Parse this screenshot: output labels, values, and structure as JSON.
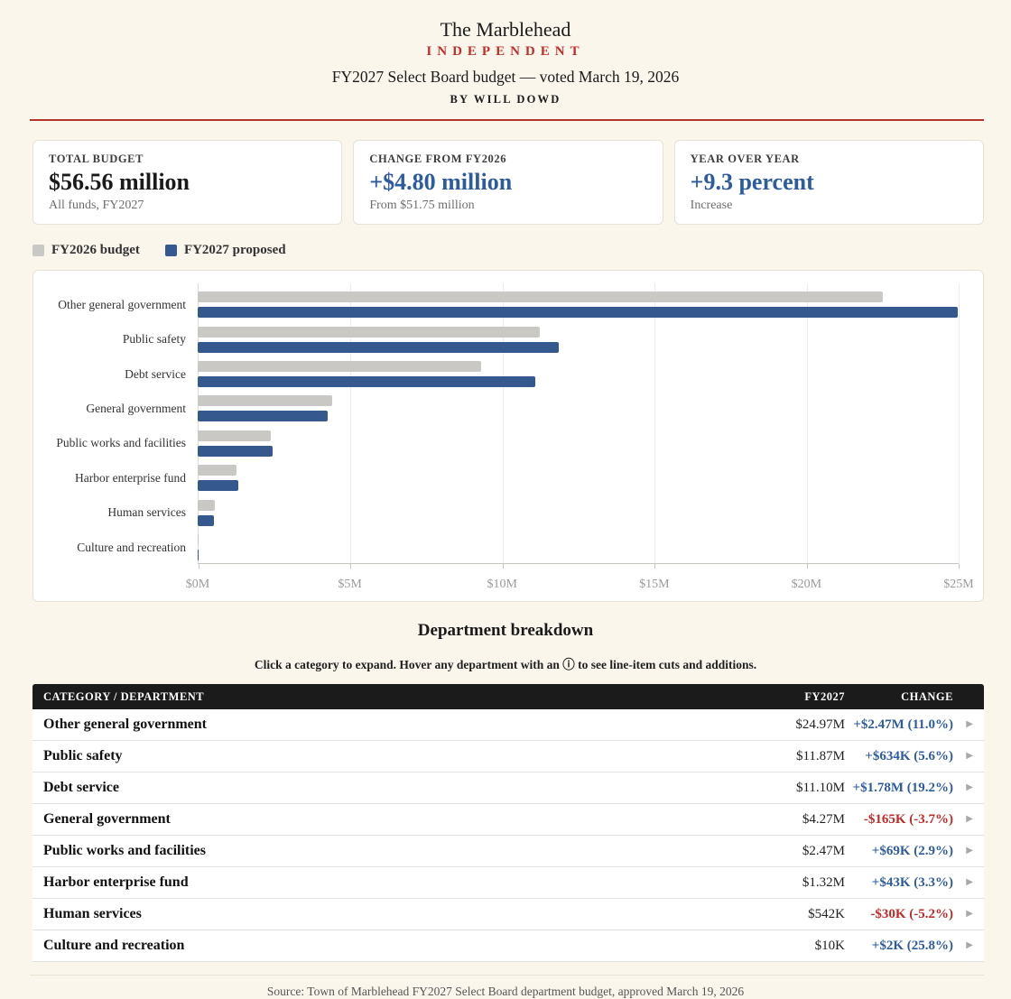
{
  "masthead": {
    "title_line1": "The Marblehead",
    "title_line2": "INDEPENDENT",
    "subtitle": "FY2027 Select Board budget — voted March 19, 2026",
    "byline": "BY WILL DOWD"
  },
  "colors": {
    "page_background": "#faf6ec",
    "accent_red": "#bf2f28",
    "accent_blue": "#2d5c9e",
    "bar_gray": "#c9c8c4",
    "bar_blue": "#35598f",
    "negative_red": "#c02a28",
    "table_header_bg": "#1b1b1b"
  },
  "stat_cards": [
    {
      "label": "TOTAL BUDGET",
      "value": "$56.56 million",
      "sub": "All funds, FY2027",
      "value_color": "#1a1a1a"
    },
    {
      "label": "CHANGE FROM FY2026",
      "value": "+$4.80 million",
      "sub": "From $51.75 million",
      "value_color": "#2d5c9e"
    },
    {
      "label": "YEAR OVER YEAR",
      "value": "+9.3 percent",
      "sub": "Increase",
      "value_color": "#2d5c9e"
    }
  ],
  "chart_data": {
    "type": "bar",
    "orientation": "horizontal",
    "unit": "millions USD",
    "categories": [
      "Other general government",
      "Public safety",
      "Debt service",
      "General government",
      "Public works and facilities",
      "Harbor enterprise fund",
      "Human services",
      "Culture and recreation"
    ],
    "series": [
      {
        "name": "FY2026 budget",
        "color": "#c9c8c4",
        "values": [
          22.5,
          11.24,
          9.32,
          4.43,
          2.4,
          1.28,
          0.57,
          0.008
        ]
      },
      {
        "name": "FY2027 proposed",
        "color": "#35598f",
        "values": [
          24.97,
          11.87,
          11.1,
          4.27,
          2.47,
          1.32,
          0.542,
          0.01
        ]
      }
    ],
    "x_ticks": [
      "$0M",
      "$5M",
      "$10M",
      "$15M",
      "$20M",
      "$25M"
    ],
    "xlim": [
      0,
      25
    ],
    "grid": true,
    "legend_position": "top-left"
  },
  "breakdown": {
    "title": "Department breakdown",
    "instructions": "Click a category to expand. Hover any department with an ⓘ to see line-item cuts and additions."
  },
  "table": {
    "headers": [
      "CATEGORY / DEPARTMENT",
      "FY2027",
      "CHANGE"
    ],
    "expand_arrow": "▶",
    "rows": [
      {
        "category": "Other general government",
        "fy2027": "$24.97M",
        "change": "+$2.47M (11.0%)",
        "direction": "up"
      },
      {
        "category": "Public safety",
        "fy2027": "$11.87M",
        "change": "+$634K (5.6%)",
        "direction": "up"
      },
      {
        "category": "Debt service",
        "fy2027": "$11.10M",
        "change": "+$1.78M (19.2%)",
        "direction": "up"
      },
      {
        "category": "General government",
        "fy2027": "$4.27M",
        "change": "-$165K (-3.7%)",
        "direction": "down"
      },
      {
        "category": "Public works and facilities",
        "fy2027": "$2.47M",
        "change": "+$69K (2.9%)",
        "direction": "up"
      },
      {
        "category": "Harbor enterprise fund",
        "fy2027": "$1.32M",
        "change": "+$43K (3.3%)",
        "direction": "up"
      },
      {
        "category": "Human services",
        "fy2027": "$542K",
        "change": "-$30K (-5.2%)",
        "direction": "down"
      },
      {
        "category": "Culture and recreation",
        "fy2027": "$10K",
        "change": "+$2K (25.8%)",
        "direction": "up"
      }
    ]
  },
  "footer": {
    "source": "Source: Town of Marblehead FY2027 Select Board department budget, approved March 19, 2026"
  }
}
